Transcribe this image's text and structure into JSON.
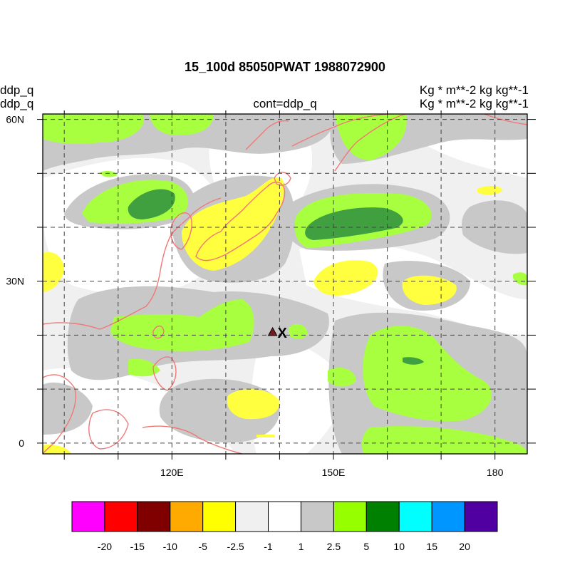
{
  "title": "15_100d 85050PWAT  1988072900",
  "left_labels": [
    "ddp_q",
    "ddp_q"
  ],
  "center_label": "cont=ddp_q",
  "right_labels": [
    "Kg  * m**-2 kg kg**-1",
    "Kg  * m**-2 kg kg**-1"
  ],
  "map": {
    "region": "Western Pacific / East Asia",
    "lon_range": [
      96,
      186
    ],
    "lat_range": [
      -2,
      61
    ],
    "grid_lons": [
      100,
      110,
      120,
      130,
      140,
      150,
      160,
      170,
      180
    ],
    "grid_lats": [
      0,
      10,
      20,
      30,
      40,
      50,
      60
    ],
    "lon_tick_labels": [
      {
        "lon": 120,
        "text": "120E"
      },
      {
        "lon": 150,
        "text": "150E"
      },
      {
        "lon": 180,
        "text": "180"
      }
    ],
    "lat_tick_labels": [
      {
        "lat": 60,
        "text": "60N"
      },
      {
        "lat": 30,
        "text": "30N"
      },
      {
        "lat": 0,
        "text": "0"
      }
    ],
    "marker": {
      "type": "triangle",
      "lon": 138.7,
      "lat": 20.6,
      "color": "#7b1a1a"
    },
    "x_marker": {
      "text": "X",
      "lon": 140.5,
      "lat": 20.6
    },
    "coastline_color": "#f07878"
  },
  "colorbar": {
    "colors": [
      "#ff00ff",
      "#ff0000",
      "#800000",
      "#ffaa00",
      "#ffff00",
      "#f0f0f0",
      "#ffffff",
      "#c8c8c8",
      "#96ff00",
      "#008000",
      "#00ffff",
      "#0096ff",
      "#5000a0"
    ],
    "labels": [
      "-20",
      "-15",
      "-10",
      "-5",
      "-2.5",
      "-1",
      "1",
      "2.5",
      "5",
      "10",
      "15",
      "20"
    ]
  }
}
